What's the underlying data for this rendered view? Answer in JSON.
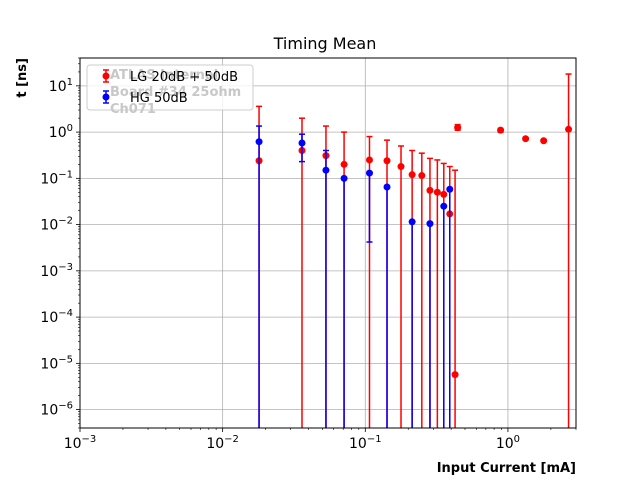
{
  "chart_data": {
    "type": "scatter",
    "title": "Timing Mean",
    "xlabel": "Input Current [mA]",
    "ylabel": "t [ns]",
    "xscale": "log",
    "yscale": "log",
    "xlim": [
      0.001,
      3.0
    ],
    "ylim": [
      4e-07,
      40
    ],
    "grid": true,
    "legend_position": "top-left",
    "xticks": [
      {
        "value": 0.001,
        "base": "10",
        "exp": "−3"
      },
      {
        "value": 0.01,
        "base": "10",
        "exp": "−2"
      },
      {
        "value": 0.1,
        "base": "10",
        "exp": "−1"
      },
      {
        "value": 1,
        "base": "10",
        "exp": "0"
      }
    ],
    "yticks": [
      {
        "value": 1e-06,
        "base": "10",
        "exp": "−6"
      },
      {
        "value": 1e-05,
        "base": "10",
        "exp": "−5"
      },
      {
        "value": 0.0001,
        "base": "10",
        "exp": "−4"
      },
      {
        "value": 0.001,
        "base": "10",
        "exp": "−3"
      },
      {
        "value": 0.01,
        "base": "10",
        "exp": "−2"
      },
      {
        "value": 0.1,
        "base": "10",
        "exp": "−1"
      },
      {
        "value": 1,
        "base": "10",
        "exp": "0"
      },
      {
        "value": 10,
        "base": "10",
        "exp": "1"
      }
    ],
    "annotations": [
      "ATLAS Internal",
      "Board #34 25ohm",
      "Ch071"
    ],
    "series": [
      {
        "name": "LG 20dB + 50dB",
        "color": "#ff0000",
        "points": [
          {
            "x": 0.018,
            "y": 0.24,
            "lo": 1e-09,
            "hi": 3.6
          },
          {
            "x": 0.036,
            "y": 0.4,
            "lo": 1e-09,
            "hi": 2.0
          },
          {
            "x": 0.053,
            "y": 0.31,
            "lo": 1e-09,
            "hi": 1.35
          },
          {
            "x": 0.071,
            "y": 0.2,
            "lo": 1e-09,
            "hi": 1.0
          },
          {
            "x": 0.107,
            "y": 0.25,
            "lo": 1e-09,
            "hi": 0.8
          },
          {
            "x": 0.142,
            "y": 0.24,
            "lo": 1e-09,
            "hi": 0.67
          },
          {
            "x": 0.178,
            "y": 0.18,
            "lo": 1e-09,
            "hi": 0.5
          },
          {
            "x": 0.213,
            "y": 0.12,
            "lo": 1e-09,
            "hi": 0.4
          },
          {
            "x": 0.249,
            "y": 0.115,
            "lo": 1e-09,
            "hi": 0.35
          },
          {
            "x": 0.284,
            "y": 0.055,
            "lo": 1e-09,
            "hi": 0.27
          },
          {
            "x": 0.32,
            "y": 0.05,
            "lo": 1e-09,
            "hi": 0.25
          },
          {
            "x": 0.355,
            "y": 0.045,
            "lo": 1e-09,
            "hi": 0.21
          },
          {
            "x": 0.391,
            "y": 0.017,
            "lo": 1e-09,
            "hi": 0.18
          },
          {
            "x": 0.426,
            "y": 5.7e-06,
            "lo": 1e-09,
            "hi": 0.15
          },
          {
            "x": 0.444,
            "y": 1.25,
            "lo": 1.1,
            "hi": 1.45
          },
          {
            "x": 0.888,
            "y": 1.1,
            "lo": 1.0,
            "hi": 1.2
          },
          {
            "x": 1.33,
            "y": 0.72,
            "lo": 0.68,
            "hi": 0.76
          },
          {
            "x": 1.78,
            "y": 0.65,
            "lo": 0.62,
            "hi": 0.68
          },
          {
            "x": 2.66,
            "y": 1.15,
            "lo": 1e-09,
            "hi": 18.0
          }
        ]
      },
      {
        "name": "HG 50dB",
        "color": "#0000ff",
        "points": [
          {
            "x": 0.018,
            "y": 0.62,
            "lo": 1e-09,
            "hi": 1.35
          },
          {
            "x": 0.036,
            "y": 0.58,
            "lo": 0.23,
            "hi": 0.9
          },
          {
            "x": 0.053,
            "y": 0.15,
            "lo": 1e-09,
            "hi": 0.4
          },
          {
            "x": 0.071,
            "y": 0.1,
            "lo": 1e-09,
            "hi": 0.1
          },
          {
            "x": 0.107,
            "y": 0.13,
            "lo": 0.0042,
            "hi": 0.13
          },
          {
            "x": 0.142,
            "y": 0.065,
            "lo": 1e-09,
            "hi": 0.065
          },
          {
            "x": 0.213,
            "y": 0.0115,
            "lo": 1e-09,
            "hi": 0.0115
          },
          {
            "x": 0.284,
            "y": 0.0105,
            "lo": 1e-09,
            "hi": 0.0105
          },
          {
            "x": 0.355,
            "y": 0.025,
            "lo": 1e-09,
            "hi": 0.025
          },
          {
            "x": 0.391,
            "y": 0.058,
            "lo": 1e-09,
            "hi": 0.058
          }
        ]
      }
    ]
  }
}
